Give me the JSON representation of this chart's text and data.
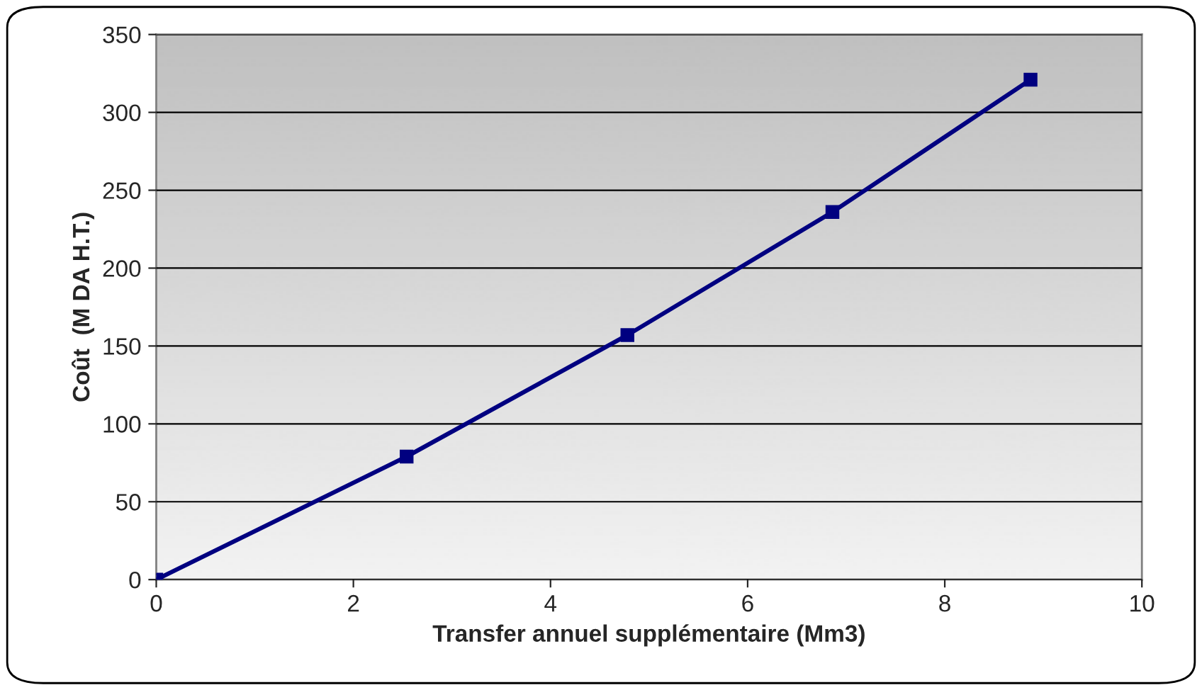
{
  "chart_data": {
    "type": "line",
    "xlabel": "Transfer annuel supplémentaire (Mm3)",
    "ylabel": "Coût  (M DA H.T.)",
    "x": [
      0,
      2.54,
      4.78,
      6.86,
      8.87
    ],
    "series": [
      {
        "color": "#000080",
        "values": [
          0,
          79,
          157,
          236,
          321
        ]
      }
    ],
    "xlim": [
      0,
      10
    ],
    "xticks": [
      0,
      2,
      4,
      6,
      8,
      10
    ],
    "ylim": [
      0,
      350
    ],
    "yticks": [
      0,
      50,
      100,
      150,
      200,
      250,
      300,
      350
    ],
    "grid": "y",
    "marker": "square",
    "line_style": "solid",
    "legend": false
  }
}
